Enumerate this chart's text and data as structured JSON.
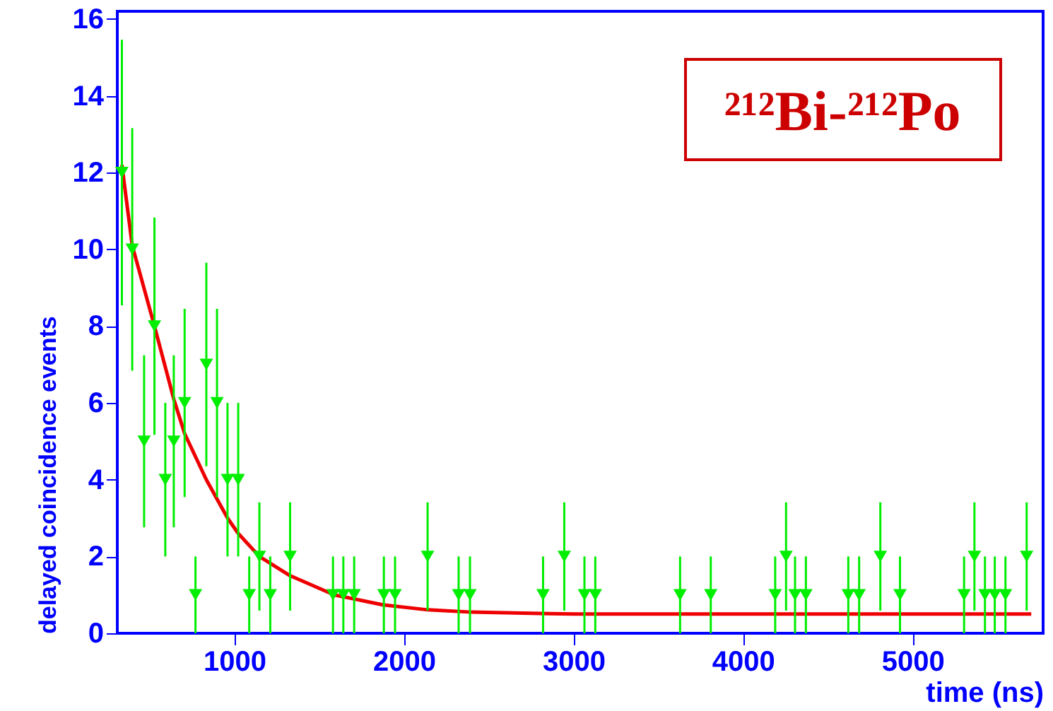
{
  "chart_data": {
    "type": "scatter",
    "xlabel": "time (ns)",
    "ylabel": "delayed coincidence events",
    "annotations": [
      "²¹²Bi-²¹²Po"
    ],
    "xlim": [
      310,
      5770
    ],
    "xticks": [
      1000,
      2000,
      3000,
      4000,
      5000
    ],
    "ylim": [
      0,
      16.2
    ],
    "yticks": [
      0,
      2,
      4,
      6,
      8,
      10,
      12,
      14,
      16
    ],
    "grid": false,
    "series": [
      {
        "type": "scatter",
        "color": "#00ee00",
        "marker": "triangle",
        "x": [
          337,
          398,
          468,
          529,
          593,
          643,
          707,
          771,
          835,
          898,
          960,
          1023,
          1088,
          1148,
          1212,
          1329,
          1582,
          1643,
          1707,
          1882,
          1948,
          2140,
          2323,
          2390,
          2821,
          2946,
          3065,
          3129,
          3629,
          3810,
          4190,
          4254,
          4307,
          4371,
          4621,
          4685,
          4810,
          4926,
          5304,
          5365,
          5427,
          5485,
          5548,
          5673
        ],
        "values": [
          12,
          10,
          5,
          8,
          4,
          5,
          6,
          1,
          7,
          6,
          4,
          4,
          1,
          2,
          1,
          2,
          1,
          1,
          1,
          1,
          1,
          2,
          1,
          1,
          1,
          2,
          1,
          1,
          1,
          1,
          1,
          2,
          1,
          1,
          1,
          1,
          2,
          1,
          1,
          2,
          1,
          1,
          1,
          2
        ],
        "errors": [
          3.46,
          3.16,
          2.24,
          2.83,
          2,
          2.24,
          2.45,
          1,
          2.65,
          2.45,
          2,
          2,
          1,
          1.41,
          1,
          1.41,
          1,
          1,
          1,
          1,
          1,
          1.41,
          1,
          1,
          1,
          1.41,
          1,
          1,
          1,
          1,
          1,
          1.41,
          1,
          1,
          1,
          1,
          1.41,
          1,
          1,
          1.41,
          1,
          1,
          1,
          1.41
        ]
      },
      {
        "type": "line",
        "color": "#ee0000",
        "line_style": "solid",
        "x": [
          337,
          398,
          529,
          643,
          707,
          835,
          960,
          1023,
          1148,
          1329,
          1590,
          1875,
          2140,
          2400,
          3000,
          5700
        ],
        "values": [
          12.2,
          10.1,
          8.0,
          6.1,
          5.2,
          4.0,
          3.0,
          2.6,
          2.0,
          1.5,
          1.0,
          0.74,
          0.61,
          0.55,
          0.5,
          0.5
        ]
      }
    ]
  }
}
